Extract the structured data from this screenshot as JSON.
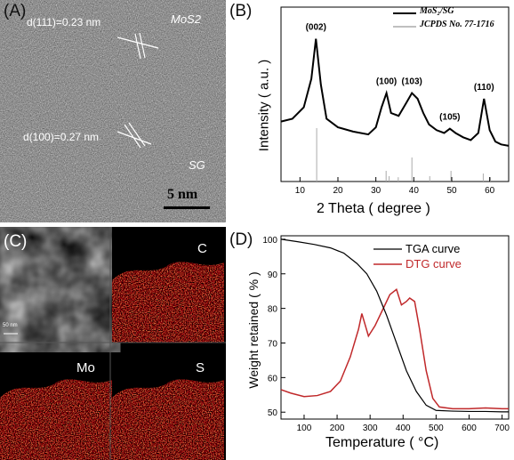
{
  "panelA": {
    "label": "(A)",
    "d111": "d(111)=0.23 nm",
    "d100": "d(100)=0.27 nm",
    "mos2": "MoS2",
    "sg": "SG",
    "scale": "5 nm"
  },
  "panelB": {
    "label": "(B)",
    "legend": [
      "MoS₂/SG",
      "JCPDS No. 77-1716"
    ],
    "ylabel": "Intensity ( a.u. )",
    "xlabel": "2 Theta ( degree )",
    "xticks": [
      "10",
      "20",
      "30",
      "40",
      "50",
      "60"
    ],
    "peaks": [
      "(002)",
      "(100)",
      "(103)",
      "(105)",
      "(110)"
    ]
  },
  "panelC": {
    "label": "(C)",
    "maps": [
      "C",
      "Mo",
      "S"
    ],
    "scale": "50 nm"
  },
  "panelD": {
    "label": "(D)",
    "legend": [
      "TGA curve",
      "DTG curve"
    ],
    "ylabel": "Weight retained ( % )",
    "xlabel": "Temperature ( °C)",
    "xticks": [
      "100",
      "200",
      "300",
      "400",
      "500",
      "600",
      "700"
    ],
    "yticks": [
      "50",
      "60",
      "70",
      "80",
      "90",
      "100"
    ]
  },
  "chart_data": [
    {
      "type": "line",
      "xlabel": "2 Theta ( degree )",
      "ylabel": "Intensity ( a.u. )",
      "xlim": [
        5,
        65
      ],
      "series": [
        {
          "name": "MoS₂/SG",
          "x": [
            5,
            8,
            11,
            13,
            14.2,
            15.5,
            17,
            20,
            24,
            28,
            30,
            31.5,
            32.8,
            34,
            36,
            38,
            39.5,
            41,
            42.5,
            44,
            46,
            48,
            49.5,
            51,
            53,
            55,
            57,
            58.5,
            60,
            61.5,
            63,
            65
          ],
          "y": [
            42,
            44,
            52,
            72,
            100,
            68,
            44,
            38,
            35,
            33,
            38,
            52,
            62,
            48,
            46,
            55,
            62,
            58,
            48,
            40,
            36,
            34,
            37,
            34,
            31,
            29,
            34,
            58,
            36,
            28,
            26,
            25
          ]
        },
        {
          "name": "JCPDS No. 77-1716",
          "type": "stick",
          "x": [
            14.4,
            32.7,
            33.5,
            35.9,
            39.5,
            44.2,
            49.8,
            58.3,
            60.2
          ],
          "y": [
            100,
            20,
            10,
            8,
            45,
            10,
            20,
            15,
            8
          ]
        }
      ],
      "annotations": [
        "(002)",
        "(100)",
        "(103)",
        "(105)",
        "(110)"
      ]
    },
    {
      "type": "line",
      "xlabel": "Temperature ( °C)",
      "ylabel": "Weight retained ( % )",
      "xlim": [
        30,
        720
      ],
      "ylim": [
        48,
        101
      ],
      "series": [
        {
          "name": "TGA curve",
          "x": [
            30,
            80,
            130,
            180,
            220,
            260,
            290,
            320,
            350,
            380,
            410,
            440,
            470,
            500,
            550,
            600,
            650,
            700,
            720
          ],
          "y": [
            100,
            99.3,
            98.5,
            97.5,
            96,
            93,
            90,
            85,
            78,
            70,
            62,
            56,
            52,
            50.5,
            50.3,
            50.2,
            50.2,
            50.1,
            50.1
          ]
        },
        {
          "name": "DTG curve",
          "x": [
            30,
            60,
            100,
            140,
            180,
            210,
            240,
            265,
            275,
            295,
            315,
            340,
            360,
            380,
            395,
            410,
            420,
            435,
            450,
            470,
            490,
            510,
            550,
            600,
            650,
            700,
            720
          ],
          "y": [
            56.5,
            55.5,
            54.5,
            54.8,
            56,
            59,
            66,
            74,
            78.5,
            72,
            75,
            80,
            84,
            85.5,
            81,
            82,
            83,
            82,
            74,
            62,
            54,
            51.5,
            51,
            51,
            51.2,
            51,
            51
          ]
        }
      ]
    }
  ]
}
